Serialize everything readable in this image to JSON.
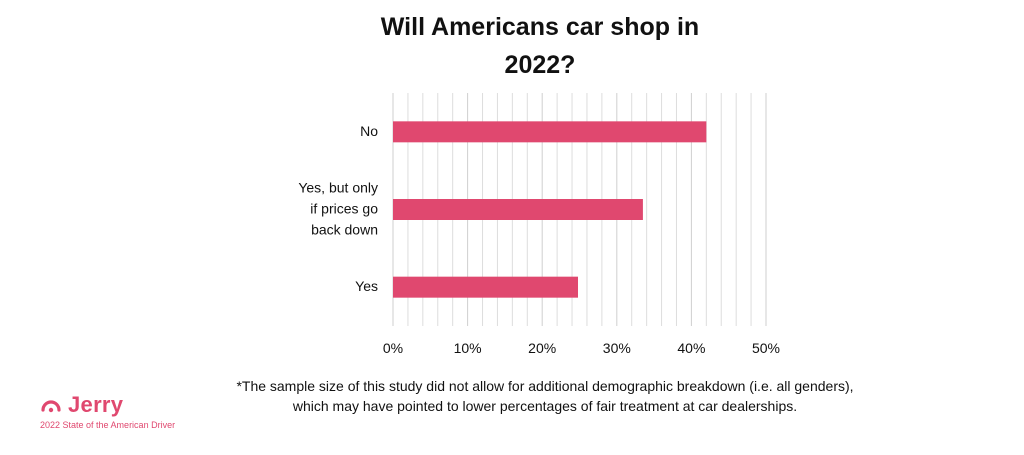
{
  "footnote": {
    "line1": "*The sample size of this study did not allow for additional demographic breakdown (i.e. all genders),",
    "line2": "which may have pointed to lower percentages of fair treatment at car dealerships."
  },
  "brand": {
    "name": "Jerry",
    "tagline": "2022 State of the American Driver",
    "color": "#e0486f",
    "icon": "jerry-logo-icon"
  },
  "chart_data": {
    "type": "bar",
    "orientation": "horizontal",
    "title": "Will Americans car shop in 2022?",
    "title_lines": [
      "Will Americans car shop in",
      "2022?"
    ],
    "categories": [
      "No",
      "Yes, but only if prices go back down",
      "Yes"
    ],
    "category_lines": [
      [
        "No"
      ],
      [
        "Yes, but only",
        "if prices go",
        "back down"
      ],
      [
        "Yes"
      ]
    ],
    "values": [
      42,
      33.5,
      24.8
    ],
    "xlim": [
      0,
      50
    ],
    "x_ticks": [
      0,
      10,
      20,
      30,
      40,
      50
    ],
    "x_tick_labels": [
      "0%",
      "10%",
      "20%",
      "30%",
      "40%",
      "50%"
    ],
    "xlabel": "",
    "ylabel": "",
    "grid": true,
    "bar_color": "#e0486f",
    "grid_color": "#dddddd"
  }
}
